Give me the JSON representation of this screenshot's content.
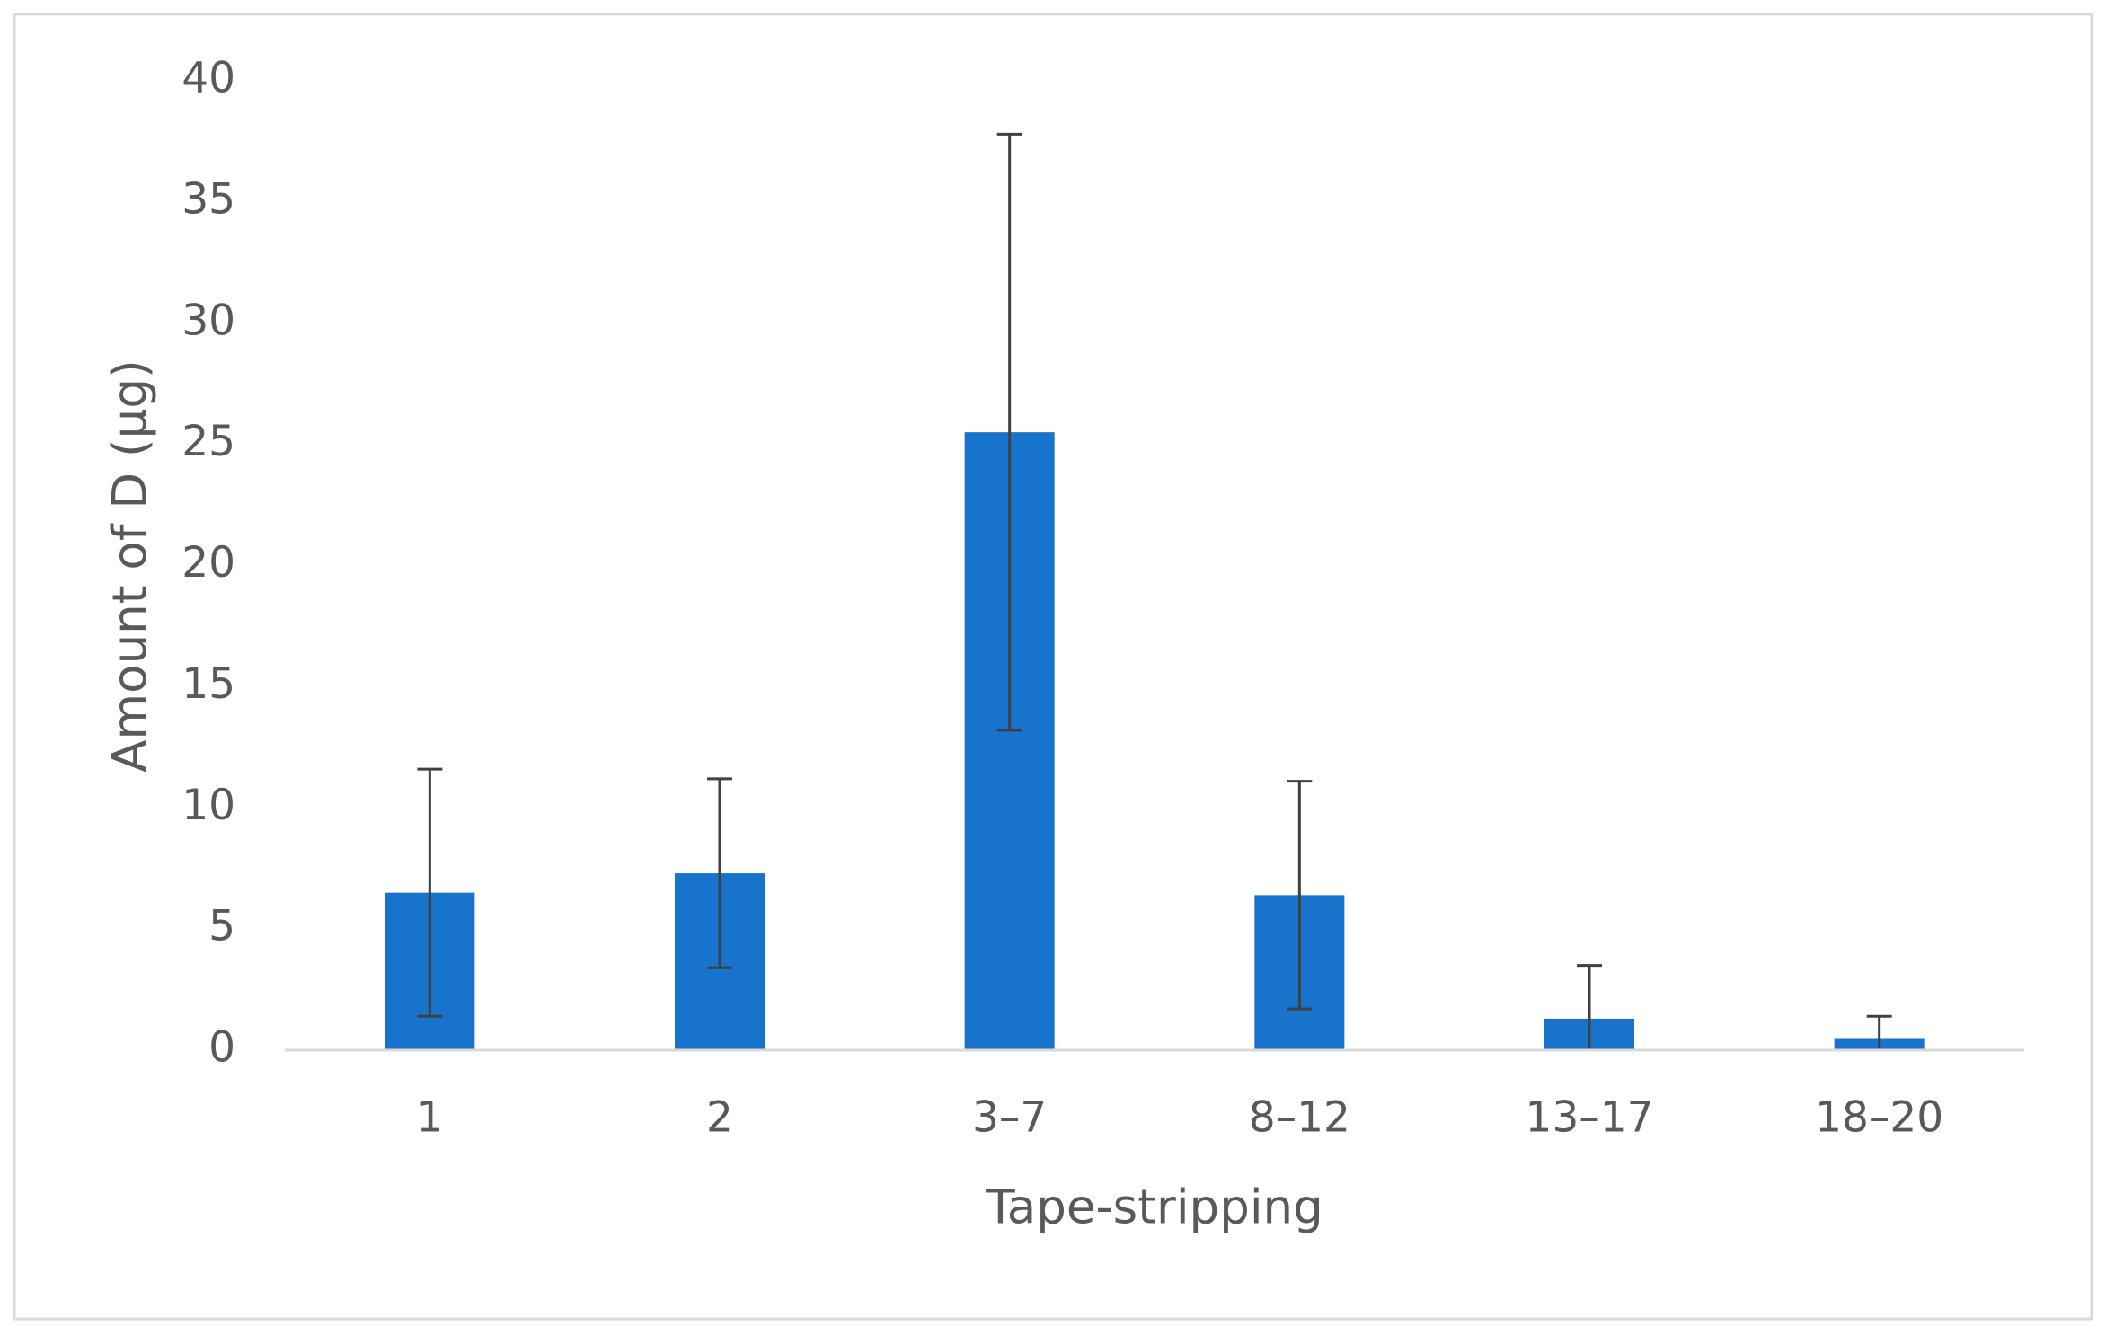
{
  "chart_data": {
    "type": "bar",
    "categories": [
      "1",
      "2",
      "3–7",
      "8–12",
      "13–17",
      "18–20"
    ],
    "values": [
      6.5,
      7.3,
      25.5,
      6.4,
      1.3,
      0.5
    ],
    "errors": [
      5.1,
      3.9,
      12.3,
      4.7,
      2.2,
      0.9
    ],
    "color": "#1773cc",
    "error_color": "#404040",
    "xlabel": "Tape-stripping",
    "ylabel": "Amount of D (µg)",
    "ylim": [
      0,
      40
    ],
    "yticks": [
      0,
      5,
      10,
      15,
      20,
      25,
      30,
      35,
      40
    ],
    "grid": false
  }
}
